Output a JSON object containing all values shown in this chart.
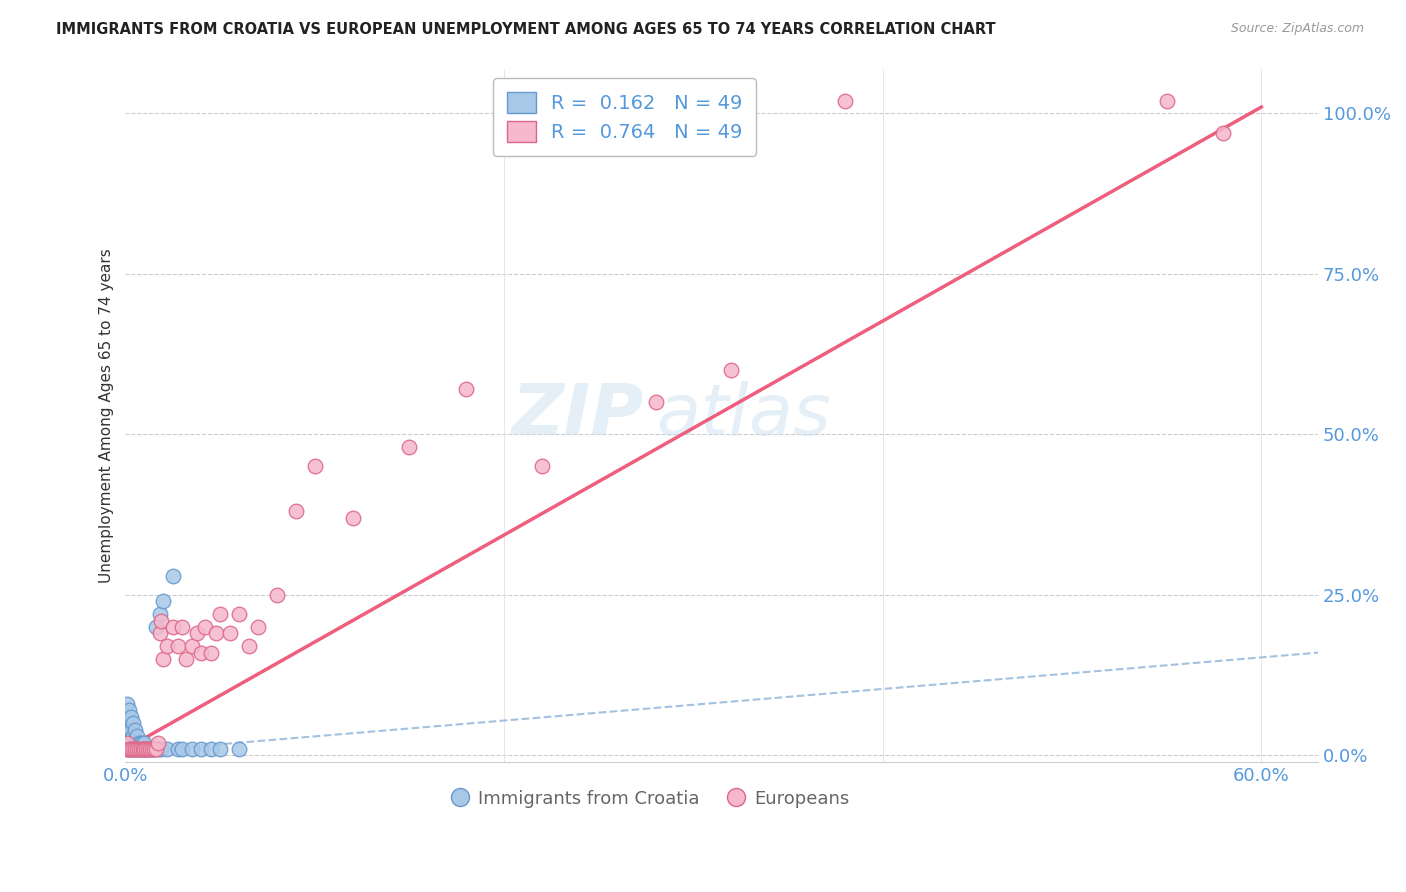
{
  "title": "IMMIGRANTS FROM CROATIA VS EUROPEAN UNEMPLOYMENT AMONG AGES 65 TO 74 YEARS CORRELATION CHART",
  "source": "Source: ZipAtlas.com",
  "ylabel": "Unemployment Among Ages 65 to 74 years",
  "ytick_values": [
    0.0,
    0.25,
    0.5,
    0.75,
    1.0
  ],
  "xlim": [
    0.0,
    0.63
  ],
  "ylim": [
    -0.01,
    1.07
  ],
  "legend_blue_r": "0.162",
  "legend_blue_n": "49",
  "legend_pink_r": "0.764",
  "legend_pink_n": "49",
  "blue_dot_face": "#a8c8e8",
  "blue_dot_edge": "#6699cc",
  "pink_dot_face": "#f5b8cc",
  "pink_dot_edge": "#dd6688",
  "blue_line_color": "#99bbdd",
  "pink_line_color": "#ee5577",
  "watermark_color": "#cce0f0",
  "blue_scatter_x": [
    0.001,
    0.001,
    0.001,
    0.001,
    0.001,
    0.002,
    0.002,
    0.002,
    0.002,
    0.003,
    0.003,
    0.003,
    0.003,
    0.004,
    0.004,
    0.004,
    0.005,
    0.005,
    0.005,
    0.006,
    0.006,
    0.006,
    0.007,
    0.007,
    0.008,
    0.008,
    0.009,
    0.009,
    0.01,
    0.01,
    0.011,
    0.012,
    0.013,
    0.014,
    0.015,
    0.016,
    0.017,
    0.018,
    0.019,
    0.02,
    0.022,
    0.025,
    0.028,
    0.03,
    0.035,
    0.04,
    0.045,
    0.05,
    0.06
  ],
  "blue_scatter_y": [
    0.01,
    0.02,
    0.03,
    0.05,
    0.08,
    0.01,
    0.02,
    0.04,
    0.07,
    0.01,
    0.02,
    0.04,
    0.06,
    0.01,
    0.03,
    0.05,
    0.01,
    0.02,
    0.04,
    0.01,
    0.02,
    0.03,
    0.01,
    0.02,
    0.01,
    0.02,
    0.01,
    0.02,
    0.01,
    0.02,
    0.01,
    0.01,
    0.01,
    0.01,
    0.01,
    0.2,
    0.01,
    0.22,
    0.01,
    0.24,
    0.01,
    0.28,
    0.01,
    0.01,
    0.01,
    0.01,
    0.01,
    0.01,
    0.01
  ],
  "pink_scatter_x": [
    0.001,
    0.001,
    0.002,
    0.003,
    0.004,
    0.005,
    0.006,
    0.007,
    0.008,
    0.009,
    0.01,
    0.011,
    0.012,
    0.013,
    0.014,
    0.015,
    0.016,
    0.017,
    0.018,
    0.019,
    0.02,
    0.022,
    0.025,
    0.028,
    0.03,
    0.032,
    0.035,
    0.038,
    0.04,
    0.042,
    0.045,
    0.048,
    0.05,
    0.055,
    0.06,
    0.065,
    0.07,
    0.08,
    0.09,
    0.1,
    0.12,
    0.15,
    0.18,
    0.22,
    0.28,
    0.32,
    0.38,
    0.55,
    0.58
  ],
  "pink_scatter_y": [
    0.01,
    0.02,
    0.01,
    0.01,
    0.01,
    0.01,
    0.01,
    0.01,
    0.01,
    0.01,
    0.01,
    0.01,
    0.01,
    0.01,
    0.01,
    0.01,
    0.01,
    0.02,
    0.19,
    0.21,
    0.15,
    0.17,
    0.2,
    0.17,
    0.2,
    0.15,
    0.17,
    0.19,
    0.16,
    0.2,
    0.16,
    0.19,
    0.22,
    0.19,
    0.22,
    0.17,
    0.2,
    0.25,
    0.38,
    0.45,
    0.37,
    0.48,
    0.57,
    0.45,
    0.55,
    0.6,
    1.02,
    1.02,
    0.97
  ],
  "blue_line_x": [
    0.0,
    0.63
  ],
  "blue_line_y": [
    0.005,
    0.16
  ],
  "pink_line_x": [
    0.0,
    0.6
  ],
  "pink_line_y": [
    0.01,
    1.01
  ]
}
